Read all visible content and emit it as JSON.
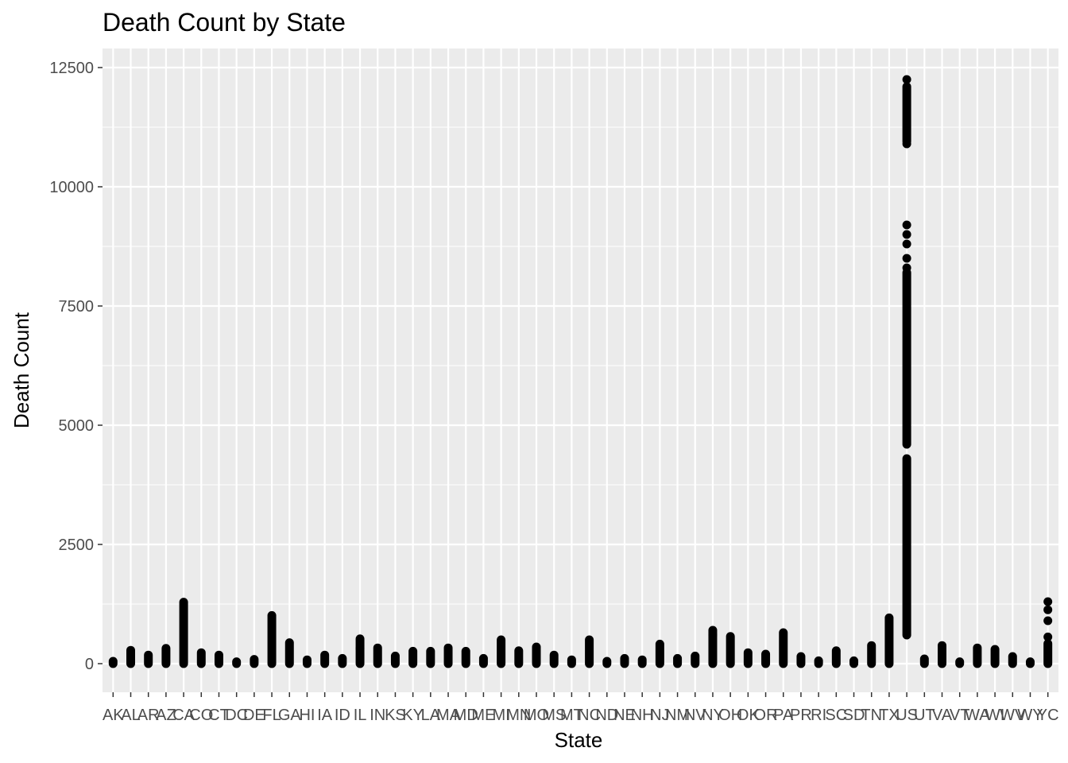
{
  "chart_data": {
    "type": "scatter",
    "title": "Death Count by State",
    "xlabel": "State",
    "ylabel": "Death Count",
    "ylim": [
      -600,
      12900
    ],
    "yticks": [
      0,
      2500,
      5000,
      7500,
      10000,
      12500
    ],
    "grid": true,
    "legend": "none",
    "point_color": "#000000",
    "panel_color": "#ebebeb",
    "grid_color": "#ffffff",
    "categories": [
      "AK",
      "AL",
      "AR",
      "AZ",
      "CA",
      "CO",
      "CT",
      "DC",
      "DE",
      "FL",
      "GA",
      "HI",
      "IA",
      "ID",
      "IL",
      "IN",
      "KS",
      "KY",
      "LA",
      "MA",
      "MD",
      "ME",
      "MI",
      "MN",
      "MO",
      "MS",
      "MT",
      "NC",
      "ND",
      "NE",
      "NH",
      "NJ",
      "NM",
      "NV",
      "NY",
      "OH",
      "OK",
      "OR",
      "PA",
      "PR",
      "RI",
      "SC",
      "SD",
      "TN",
      "TX",
      "US",
      "UT",
      "VA",
      "VT",
      "WA",
      "WI",
      "WV",
      "WY",
      "YC"
    ],
    "ranges": [
      {
        "state": "AK",
        "min": 0,
        "max": 50
      },
      {
        "state": "AL",
        "min": 0,
        "max": 280
      },
      {
        "state": "AR",
        "min": 0,
        "max": 180
      },
      {
        "state": "AZ",
        "min": 0,
        "max": 320
      },
      {
        "state": "CA",
        "min": 0,
        "max": 1290
      },
      {
        "state": "CO",
        "min": 0,
        "max": 230
      },
      {
        "state": "CT",
        "min": 0,
        "max": 180
      },
      {
        "state": "DC",
        "min": 0,
        "max": 40
      },
      {
        "state": "DE",
        "min": 0,
        "max": 90
      },
      {
        "state": "FL",
        "min": 0,
        "max": 1010
      },
      {
        "state": "GA",
        "min": 0,
        "max": 440
      },
      {
        "state": "HI",
        "min": 0,
        "max": 80
      },
      {
        "state": "IA",
        "min": 0,
        "max": 180
      },
      {
        "state": "ID",
        "min": 0,
        "max": 110
      },
      {
        "state": "IL",
        "min": 0,
        "max": 520
      },
      {
        "state": "IN",
        "min": 0,
        "max": 330
      },
      {
        "state": "KS",
        "min": 0,
        "max": 160
      },
      {
        "state": "KY",
        "min": 0,
        "max": 260
      },
      {
        "state": "LA",
        "min": 0,
        "max": 260
      },
      {
        "state": "MA",
        "min": 0,
        "max": 330
      },
      {
        "state": "MD",
        "min": 0,
        "max": 260
      },
      {
        "state": "ME",
        "min": 0,
        "max": 110
      },
      {
        "state": "MI",
        "min": 0,
        "max": 500
      },
      {
        "state": "MN",
        "min": 0,
        "max": 270
      },
      {
        "state": "MO",
        "min": 0,
        "max": 350
      },
      {
        "state": "MS",
        "min": 0,
        "max": 180
      },
      {
        "state": "MT",
        "min": 0,
        "max": 80
      },
      {
        "state": "NC",
        "min": 0,
        "max": 500
      },
      {
        "state": "ND",
        "min": 0,
        "max": 50
      },
      {
        "state": "NE",
        "min": 0,
        "max": 110
      },
      {
        "state": "NH",
        "min": 0,
        "max": 80
      },
      {
        "state": "NJ",
        "min": 0,
        "max": 410
      },
      {
        "state": "NM",
        "min": 0,
        "max": 110
      },
      {
        "state": "NV",
        "min": 0,
        "max": 160
      },
      {
        "state": "NY",
        "min": 0,
        "max": 700
      },
      {
        "state": "OH",
        "min": 0,
        "max": 570
      },
      {
        "state": "OK",
        "min": 0,
        "max": 230
      },
      {
        "state": "OR",
        "min": 0,
        "max": 200
      },
      {
        "state": "PA",
        "min": 0,
        "max": 650
      },
      {
        "state": "PR",
        "min": 0,
        "max": 150
      },
      {
        "state": "RI",
        "min": 0,
        "max": 60
      },
      {
        "state": "SC",
        "min": 0,
        "max": 270
      },
      {
        "state": "SD",
        "min": 0,
        "max": 60
      },
      {
        "state": "TN",
        "min": 0,
        "max": 380
      },
      {
        "state": "TX",
        "min": 0,
        "max": 960
      },
      {
        "state": "US",
        "min": 600,
        "max": 4300
      },
      {
        "state": "UT",
        "min": 0,
        "max": 100
      },
      {
        "state": "VA",
        "min": 0,
        "max": 380
      },
      {
        "state": "VT",
        "min": 0,
        "max": 40
      },
      {
        "state": "WA",
        "min": 0,
        "max": 330
      },
      {
        "state": "WI",
        "min": 0,
        "max": 300
      },
      {
        "state": "WV",
        "min": 0,
        "max": 150
      },
      {
        "state": "WY",
        "min": 0,
        "max": 40
      },
      {
        "state": "YC",
        "min": 0,
        "max": 420
      }
    ],
    "extra_ranges": [
      {
        "state": "US",
        "min": 4600,
        "max": 8200
      },
      {
        "state": "US",
        "min": 10950,
        "max": 12100
      }
    ],
    "points": [
      {
        "state": "IL",
        "y": 320
      },
      {
        "state": "NY",
        "y": 600
      },
      {
        "state": "US",
        "y": 8300
      },
      {
        "state": "US",
        "y": 8500
      },
      {
        "state": "US",
        "y": 8800
      },
      {
        "state": "US",
        "y": 9000
      },
      {
        "state": "US",
        "y": 9200
      },
      {
        "state": "US",
        "y": 10900
      },
      {
        "state": "US",
        "y": 12250
      },
      {
        "state": "YC",
        "y": 560
      },
      {
        "state": "YC",
        "y": 900
      },
      {
        "state": "YC",
        "y": 1130
      },
      {
        "state": "YC",
        "y": 1300
      }
    ]
  }
}
